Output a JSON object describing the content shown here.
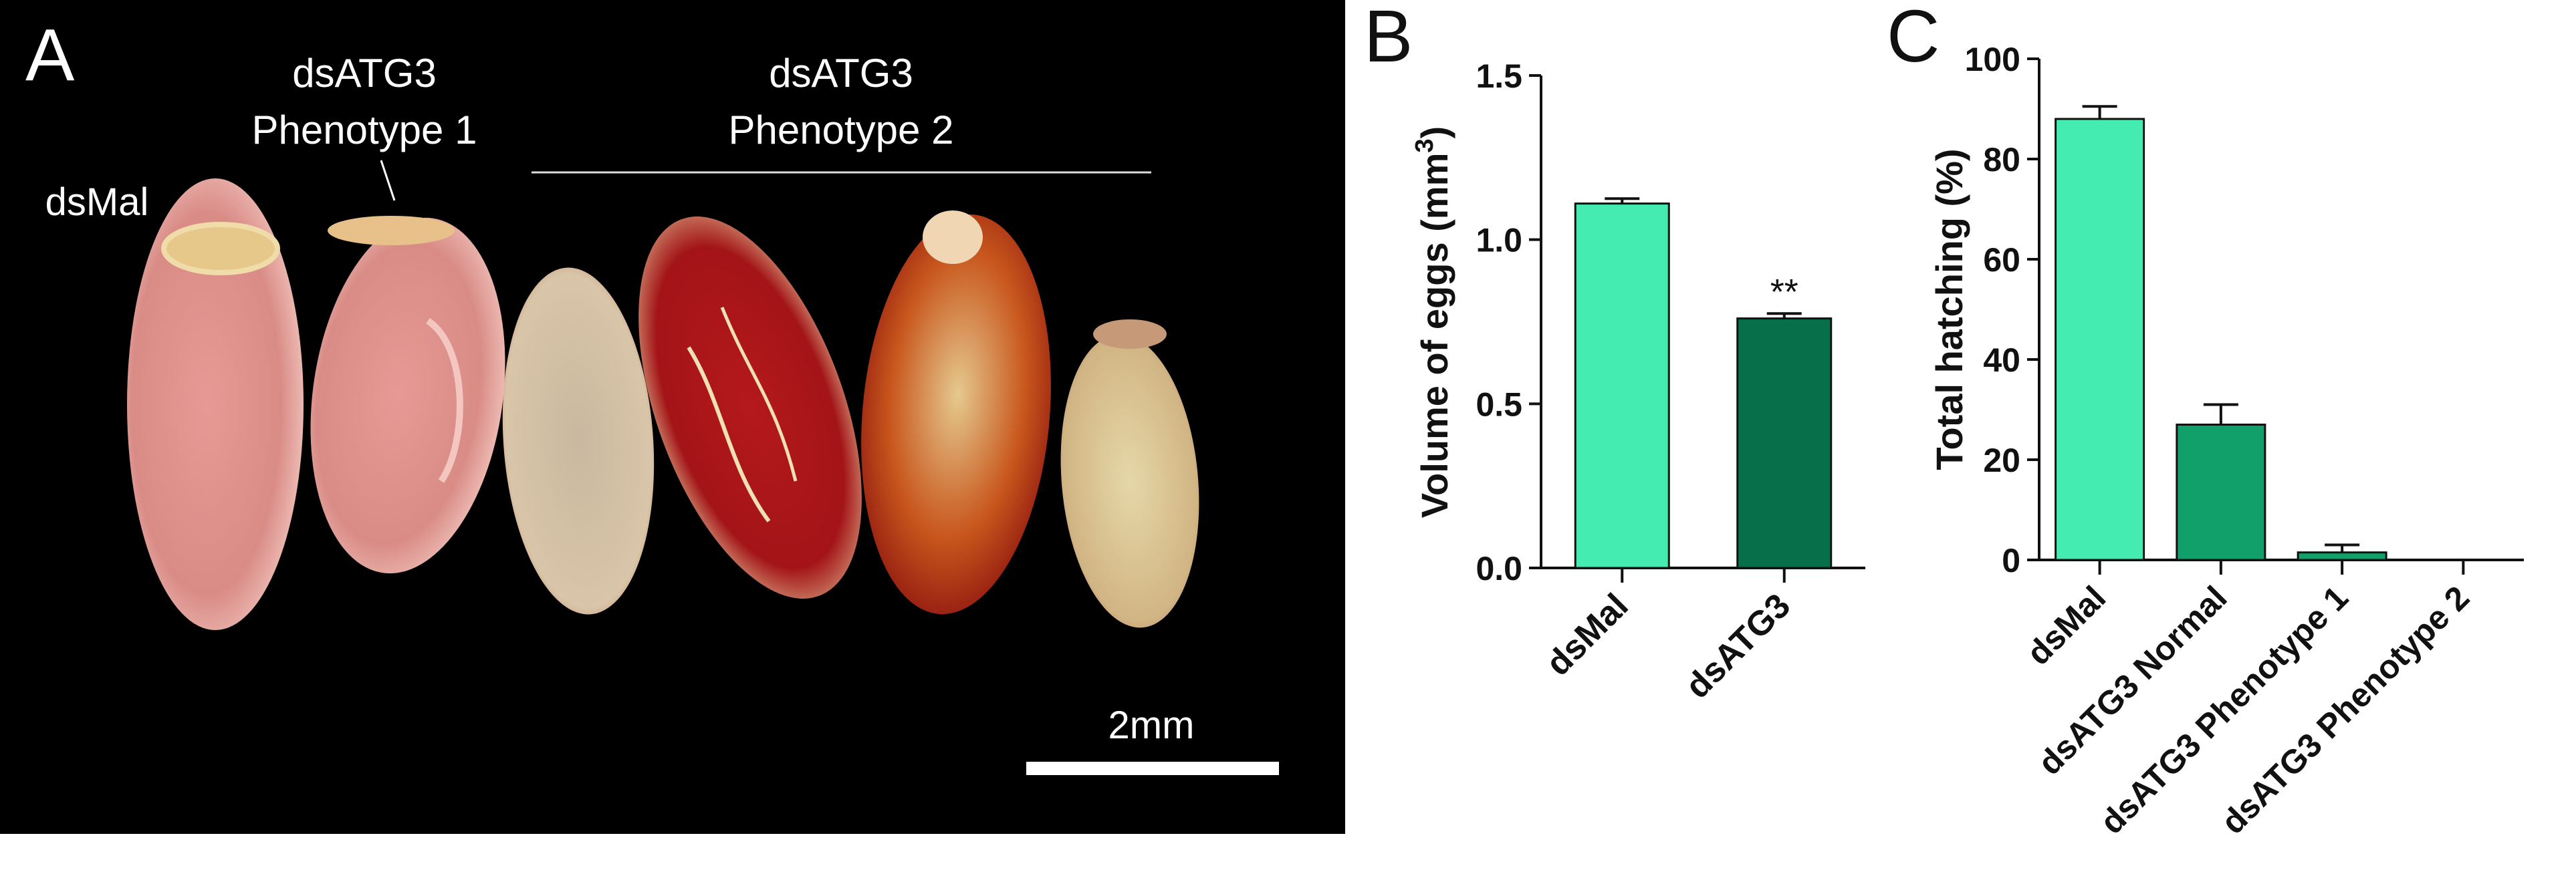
{
  "panel_a": {
    "letter": "A",
    "labels": {
      "dsmal": "dsMal",
      "phenotype1_line1": "dsATG3",
      "phenotype1_line2": "Phenotype 1",
      "phenotype2_line1": "dsATG3",
      "phenotype2_line2": "Phenotype 2"
    },
    "scale_bar_label": "2mm"
  },
  "chart_data": [
    {
      "panel": "B",
      "type": "bar",
      "categories": [
        "dsMal",
        "dsATG3"
      ],
      "values": [
        1.11,
        0.76
      ],
      "errors": [
        0.015,
        0.015
      ],
      "colors": [
        "#44ecb2",
        "#07704a"
      ],
      "significance": [
        "",
        "**"
      ],
      "ylabel_main": "Volume of eggs (mm",
      "ylabel_sup": "3",
      "ylabel_close": ")",
      "ylim": [
        0,
        1.5
      ],
      "yticks": [
        0.0,
        0.5,
        1.0,
        1.5
      ],
      "ytick_labels": [
        "0.0",
        "0.5",
        "1.0",
        "1.5"
      ]
    },
    {
      "panel": "C",
      "type": "bar",
      "categories": [
        "dsMal",
        "dsATG3 Normal",
        "dsATG3 Phenotype 1",
        "dsATG3 Phenotype 2"
      ],
      "values": [
        88,
        27,
        1.5,
        0
      ],
      "errors": [
        2.5,
        4,
        1.5,
        0
      ],
      "colors": [
        "#44ecb2",
        "#12a06a",
        "#12a06a",
        "#12a06a"
      ],
      "ylabel": "Total hatching (%)",
      "ylim": [
        0,
        100
      ],
      "yticks": [
        0,
        20,
        40,
        60,
        80,
        100
      ],
      "ytick_labels": [
        "0",
        "20",
        "40",
        "60",
        "80",
        "100"
      ]
    }
  ]
}
